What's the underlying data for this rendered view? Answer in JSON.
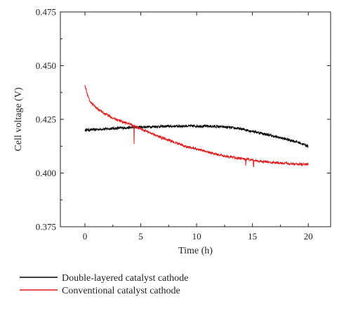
{
  "chart_data": {
    "type": "line",
    "title": "",
    "xlabel": "Time (h)",
    "ylabel": "Cell voltage (V)",
    "xlim": [
      -2.2,
      22
    ],
    "ylim": [
      0.375,
      0.475
    ],
    "x_ticks": [
      0,
      5,
      10,
      15,
      20
    ],
    "x_tick_labels": [
      "0",
      "5",
      "10",
      "15",
      "20"
    ],
    "y_ticks": [
      0.375,
      0.4,
      0.425,
      0.45,
      0.475
    ],
    "y_tick_labels": [
      "0.375",
      "0.400",
      "0.425",
      "0.450",
      "0.475"
    ],
    "grid": false,
    "legend_position": "below",
    "series": [
      {
        "name": "Double-layered catalyst cathode",
        "color": "#000000",
        "x": [
          0,
          1,
          2,
          3,
          4,
          5,
          6,
          7,
          8,
          9,
          10,
          11,
          12,
          13,
          14,
          15,
          16,
          17,
          18,
          19,
          20
        ],
        "y": [
          0.42,
          0.4203,
          0.4206,
          0.4209,
          0.4212,
          0.4214,
          0.4216,
          0.4217,
          0.4218,
          0.4219,
          0.4219,
          0.4218,
          0.4216,
          0.4212,
          0.4205,
          0.4195,
          0.4183,
          0.417,
          0.4158,
          0.4145,
          0.4125
        ]
      },
      {
        "name": "Conventional catalyst cathode",
        "color": "#e41a1c",
        "x": [
          0,
          0.25,
          0.5,
          1,
          1.5,
          2,
          3,
          4,
          5,
          6,
          7,
          8,
          9,
          10,
          11,
          12,
          13,
          14,
          15,
          16,
          17,
          18,
          19,
          20
        ],
        "y": [
          0.441,
          0.436,
          0.433,
          0.4305,
          0.4285,
          0.427,
          0.4245,
          0.4228,
          0.4205,
          0.4185,
          0.4162,
          0.4143,
          0.4125,
          0.4112,
          0.4098,
          0.4085,
          0.4075,
          0.4067,
          0.406,
          0.4053,
          0.4048,
          0.4045,
          0.4042,
          0.404
        ]
      }
    ],
    "annotations": [
      {
        "series": 1,
        "x": 4.4,
        "y": 0.4135,
        "note": "downward spike"
      },
      {
        "series": 1,
        "x": 14.4,
        "y": 0.4035,
        "note": "downward spike"
      },
      {
        "series": 1,
        "x": 15.1,
        "y": 0.403,
        "note": "downward spike"
      }
    ]
  }
}
